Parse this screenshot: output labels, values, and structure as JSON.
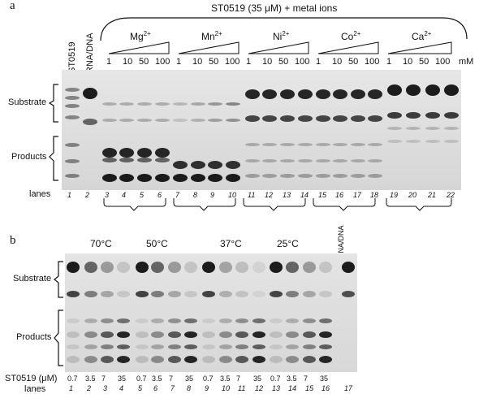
{
  "panel_a": {
    "label": "a",
    "header": "ST0519 (35 μM) + metal ions",
    "lane_headers": [
      "ST0519",
      "RNA/DNA"
    ],
    "metals": [
      {
        "ion": "Mg",
        "charge": "2+"
      },
      {
        "ion": "Mn",
        "charge": "2+"
      },
      {
        "ion": "Ni",
        "charge": "2+"
      },
      {
        "ion": "Co",
        "charge": "2+"
      },
      {
        "ion": "Ca",
        "charge": "2+"
      }
    ],
    "concentrations": [
      "1",
      "10",
      "50",
      "100"
    ],
    "unit": "mM",
    "substrate_label": "Substrate",
    "products_label": "Products",
    "lanes_label": "lanes",
    "lane_numbers": [
      "1",
      "2",
      "3",
      "4",
      "5",
      "6",
      "7",
      "8",
      "9",
      "10",
      "11",
      "12",
      "13",
      "14",
      "15",
      "16",
      "17",
      "18",
      "19",
      "20",
      "21",
      "22"
    ]
  },
  "panel_b": {
    "label": "b",
    "temperatures": [
      "70°C",
      "50°C",
      "37°C",
      "25°C"
    ],
    "rna_dna_label": "RNA/DNA",
    "substrate_label": "Substrate",
    "products_label": "Products",
    "conc_label": "ST0519 (μM)",
    "conc_values": [
      "0.7",
      "3.5",
      "7",
      "35",
      "0.7",
      "3.5",
      "7",
      "35",
      "0.7",
      "3.5",
      "7",
      "35",
      "0.7",
      "3.5",
      "7",
      "35"
    ],
    "lanes_label": "lanes",
    "lane_numbers": [
      "1",
      "2",
      "3",
      "4",
      "5",
      "6",
      "7",
      "8",
      "9",
      "10",
      "11",
      "12",
      "13",
      "14",
      "15",
      "16",
      "17"
    ]
  },
  "colors": {
    "gel_bg": "#dcdcdc",
    "band": "#111111"
  }
}
